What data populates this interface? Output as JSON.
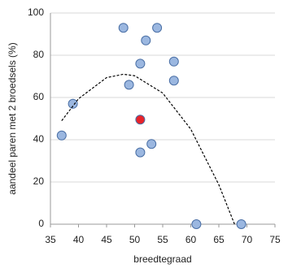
{
  "chart_data": {
    "type": "scatter",
    "xlabel": "breedtegraad",
    "ylabel": "aandeel paren met 2 broedsels (%)",
    "xlim": [
      35,
      75
    ],
    "xticks": [
      35,
      40,
      45,
      50,
      55,
      60,
      65,
      70,
      75
    ],
    "ylim": [
      0,
      100
    ],
    "yticks": [
      0,
      20,
      40,
      60,
      80,
      100
    ],
    "grid": true,
    "series": [
      {
        "type": "scatter",
        "color": "#9bb7e0",
        "x": [
          37,
          39,
          48,
          52,
          54,
          51,
          57,
          49,
          57,
          51,
          53,
          61,
          69
        ],
        "values": [
          42,
          57,
          93,
          87,
          93,
          76,
          77,
          66,
          68,
          34,
          38,
          0,
          0
        ]
      },
      {
        "type": "scatter",
        "color": "#e8232a",
        "x": [
          51
        ],
        "values": [
          49.5
        ]
      },
      {
        "type": "line",
        "color": "#000000",
        "style": "dashed",
        "x": [
          37,
          40,
          45,
          48,
          50,
          55,
          60,
          65,
          67.8
        ],
        "values": [
          49,
          59.4,
          69.4,
          71,
          70.3,
          62.1,
          45,
          18.7,
          0
        ]
      }
    ]
  }
}
